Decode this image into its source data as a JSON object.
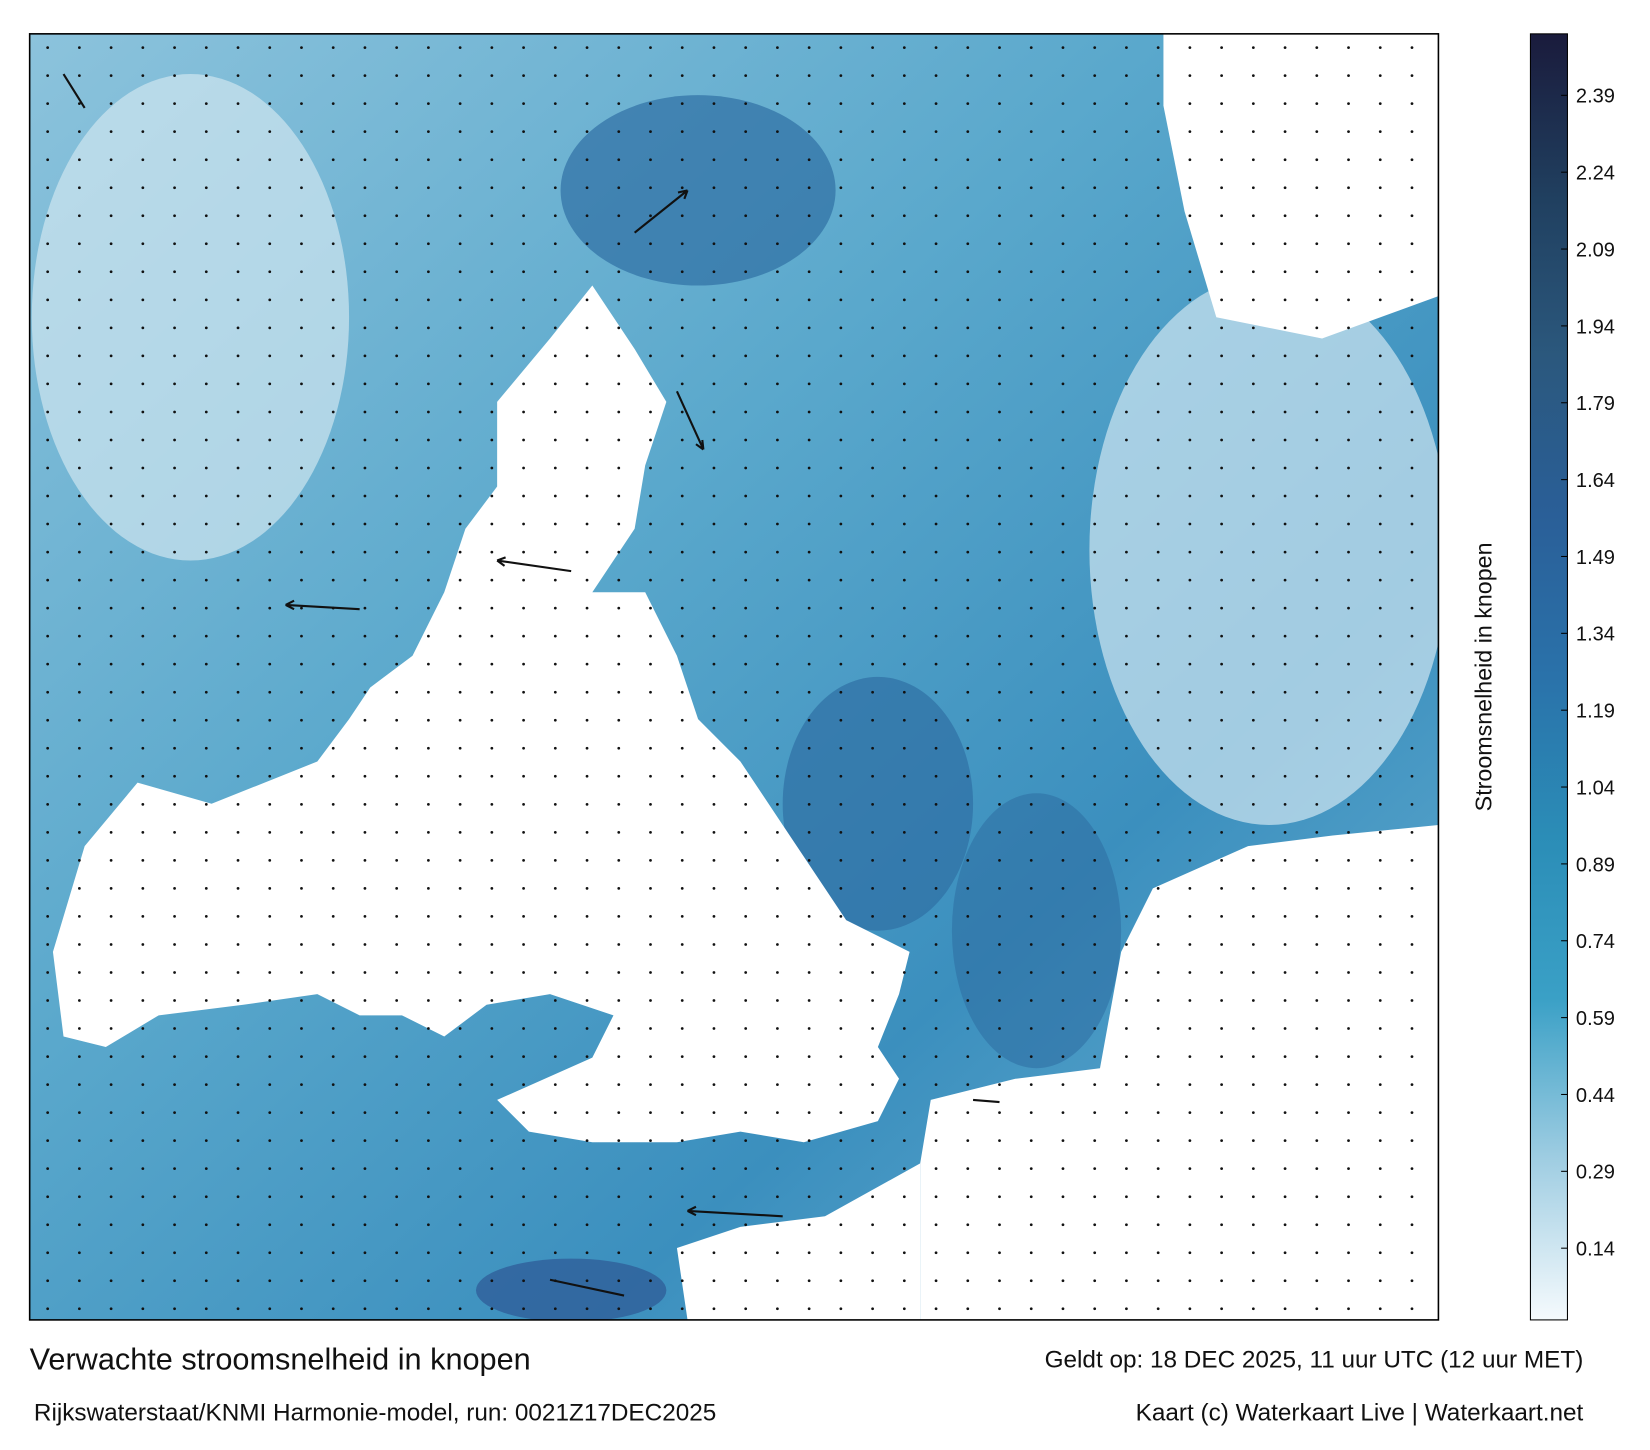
{
  "header": {
    "title": "Verwachte stroomsnelheid in knopen",
    "subtitle": "Rijkswaterstaat/KNMI Harmonie-model, run: 0021Z17DEC2025",
    "valid": "Geldt op: 18 DEC 2025, 11 uur UTC (12 uur MET)",
    "credit": "Kaart (c) Waterkaart Live | Waterkaart.net"
  },
  "colorbar": {
    "label": "Stroomsnelheid in knopen",
    "lim": [
      0,
      2.51
    ],
    "ticks": [
      0.14,
      0.29,
      0.44,
      0.59,
      0.74,
      0.89,
      1.04,
      1.19,
      1.34,
      1.49,
      1.64,
      1.79,
      1.94,
      2.09,
      2.24,
      2.39
    ],
    "colors": [
      "#f5fafd",
      "#9fcde2",
      "#3aa0c6",
      "#2b8db7",
      "#2a72aa",
      "#2a5f98",
      "#2b587d",
      "#203f5f",
      "#1a1b3c"
    ]
  }
}
